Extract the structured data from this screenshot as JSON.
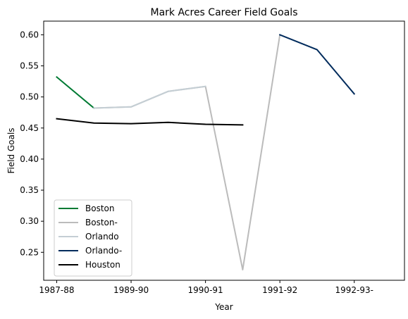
{
  "chart_data": {
    "type": "line",
    "title": "Mark Acres Career Field Goals",
    "xlabel": "Year",
    "ylabel": "Field Goals",
    "x_ticks": [
      "1987-88",
      "1989-90",
      "1990-91",
      "1991-92",
      "1992-93-"
    ],
    "x_tick_positions": [
      0,
      2,
      4,
      6,
      8
    ],
    "xlim": [
      -0.35,
      9.35
    ],
    "ylim": [
      0.205,
      0.622
    ],
    "y_ticks": [
      0.25,
      0.3,
      0.35,
      0.4,
      0.45,
      0.5,
      0.55,
      0.6
    ],
    "y_tick_labels": [
      "0.25",
      "0.30",
      "0.35",
      "0.40",
      "0.45",
      "0.50",
      "0.55",
      "0.60"
    ],
    "legend_position": "lower-left",
    "grid": false,
    "series": [
      {
        "name": "Boston",
        "color": "#007a33",
        "points": [
          [
            0,
            0.532
          ],
          [
            1,
            0.482
          ]
        ]
      },
      {
        "name": "Boston-",
        "color": "#bbbbbb",
        "points": [
          [
            1,
            0.482
          ],
          [
            2,
            0.484
          ],
          [
            3,
            0.509
          ],
          [
            4,
            0.517
          ],
          [
            5,
            0.222
          ],
          [
            6,
            0.6
          ]
        ]
      },
      {
        "name": "Orlando",
        "color": "#c4ced4",
        "points": [
          [
            1,
            0.482
          ],
          [
            2,
            0.484
          ],
          [
            3,
            0.509
          ],
          [
            4,
            0.517
          ]
        ]
      },
      {
        "name": "Orlando-",
        "color": "#002b5c",
        "points": [
          [
            6,
            0.6
          ],
          [
            7,
            0.576
          ],
          [
            8,
            0.505
          ]
        ]
      },
      {
        "name": "Houston",
        "color": "#000000",
        "points": [
          [
            0,
            0.465
          ],
          [
            1,
            0.458
          ],
          [
            2,
            0.457
          ],
          [
            3,
            0.459
          ],
          [
            4,
            0.456
          ],
          [
            5,
            0.455
          ]
        ]
      }
    ]
  }
}
